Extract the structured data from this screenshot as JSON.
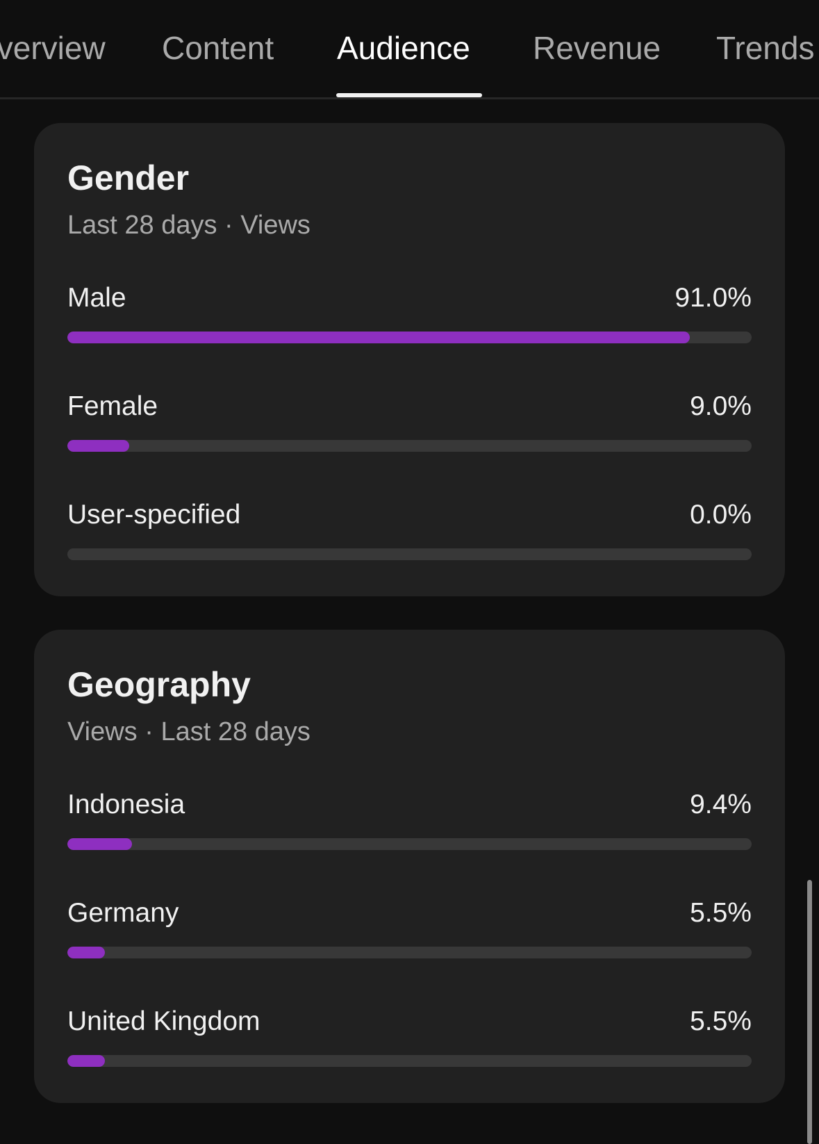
{
  "tabs": [
    {
      "label": "Overview",
      "active": false
    },
    {
      "label": "Content",
      "active": false
    },
    {
      "label": "Audience",
      "active": true
    },
    {
      "label": "Revenue",
      "active": false
    },
    {
      "label": "Trends",
      "active": false
    }
  ],
  "accent_color": "#8e2fc0",
  "gender": {
    "title": "Gender",
    "subtitle": "Last 28 days · Views",
    "rows": [
      {
        "label": "Male",
        "value": "91.0%",
        "percent": 91.0
      },
      {
        "label": "Female",
        "value": "9.0%",
        "percent": 9.0
      },
      {
        "label": "User-specified",
        "value": "0.0%",
        "percent": 0.0
      }
    ]
  },
  "geography": {
    "title": "Geography",
    "subtitle": "Views · Last 28 days",
    "rows": [
      {
        "label": "Indonesia",
        "value": "9.4%",
        "percent": 9.4
      },
      {
        "label": "Germany",
        "value": "5.5%",
        "percent": 5.5
      },
      {
        "label": "United Kingdom",
        "value": "5.5%",
        "percent": 5.5
      }
    ]
  }
}
